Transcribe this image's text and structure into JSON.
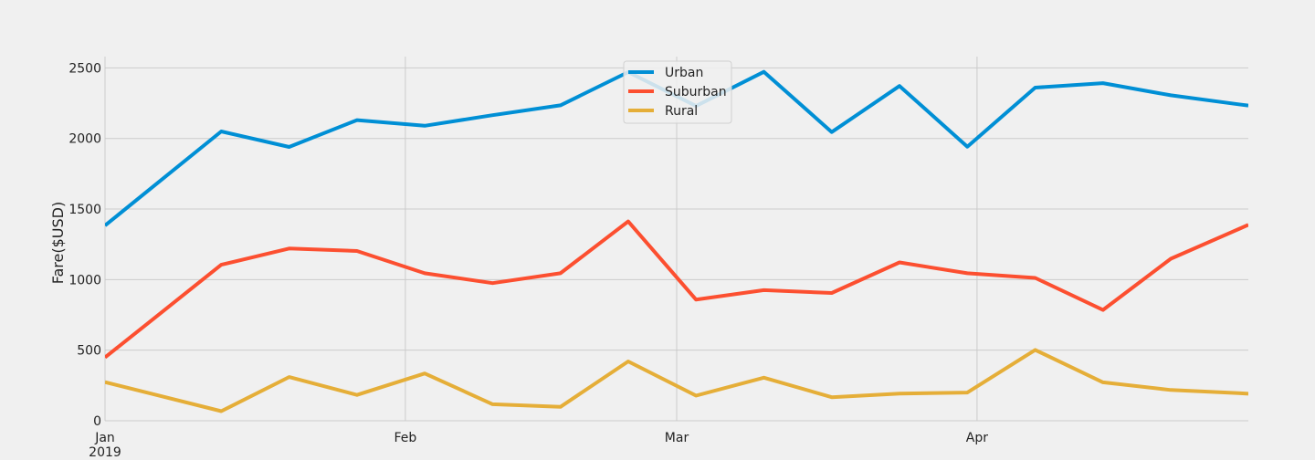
{
  "chart_data": {
    "type": "line",
    "title": "",
    "xlabel": "",
    "ylabel": "Fare($USD)",
    "x": [
      "2019-01-06",
      "2019-01-13",
      "2019-01-20",
      "2019-01-27",
      "2019-02-03",
      "2019-02-10",
      "2019-02-17",
      "2019-02-24",
      "2019-03-03",
      "2019-03-10",
      "2019-03-17",
      "2019-03-24",
      "2019-03-31",
      "2019-04-07",
      "2019-04-14",
      "2019-04-21",
      "2019-04-28"
    ],
    "xlim": [
      "2019-01-01",
      "2019-04-29"
    ],
    "x_ticks": [
      {
        "date": "2019-01-01",
        "label": "Jan",
        "sublabel": "2019"
      },
      {
        "date": "2019-02-01",
        "label": "Feb",
        "sublabel": ""
      },
      {
        "date": "2019-03-01",
        "label": "Mar",
        "sublabel": ""
      },
      {
        "date": "2019-04-01",
        "label": "Apr",
        "sublabel": ""
      }
    ],
    "ylim": [
      0,
      2580
    ],
    "y_ticks": [
      0,
      500,
      1000,
      1500,
      2000,
      2500
    ],
    "grid": true,
    "legend_position": "top-center",
    "series": [
      {
        "name": "Urban",
        "color": "#008fd5",
        "values": [
          1661,
          2050,
          1940,
          2130,
          2090,
          2165,
          2235,
          2470,
          2230,
          2472,
          2045,
          2372,
          1942,
          2360,
          2392,
          2306,
          2242
        ]
      },
      {
        "name": "Suburban",
        "color": "#fc4f30",
        "values": [
          722,
          1105,
          1220,
          1203,
          1045,
          975,
          1045,
          1412,
          858,
          925,
          905,
          1122,
          1045,
          1012,
          785,
          1148,
          1358
        ]
      },
      {
        "name": "Rural",
        "color": "#e5ae38",
        "values": [
          188,
          68,
          310,
          183,
          335,
          117,
          98,
          420,
          178,
          305,
          167,
          192,
          200,
          502,
          272,
          218,
          195
        ]
      }
    ]
  }
}
